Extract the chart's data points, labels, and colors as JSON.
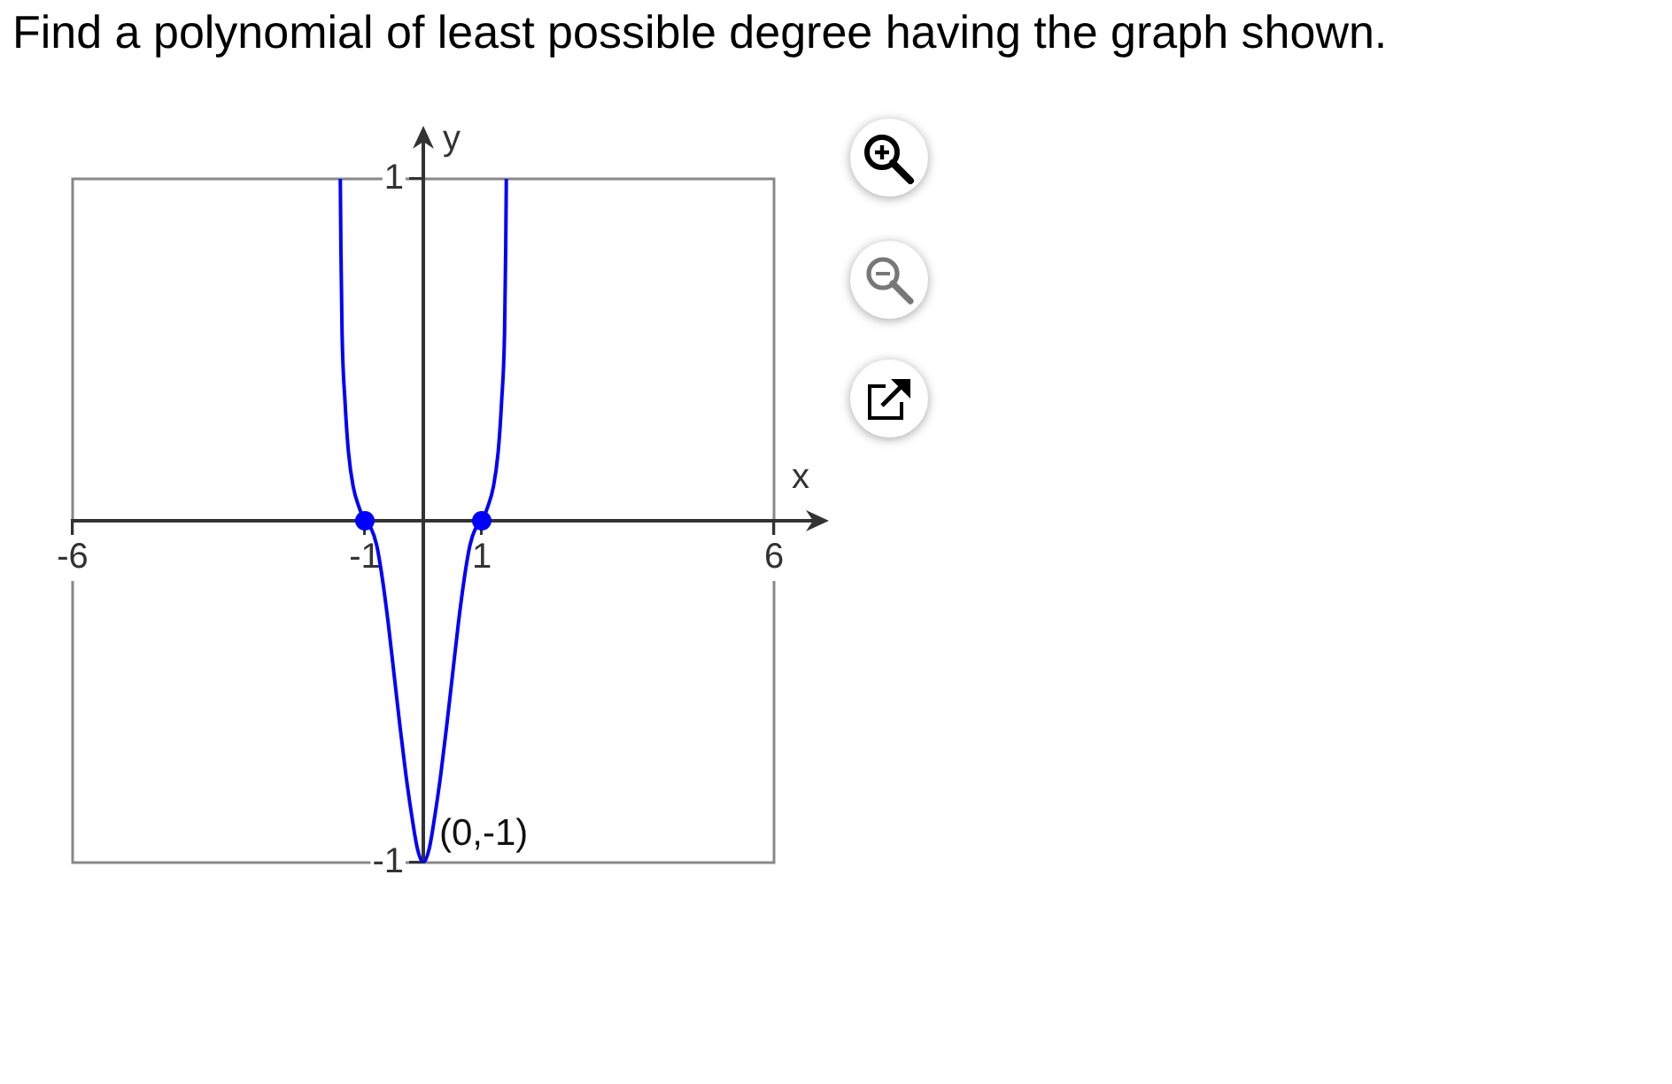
{
  "chart_data": {
    "type": "line",
    "title": "Find a polynomial of least possible degree having the graph shown.",
    "xlabel": "x",
    "ylabel": "y",
    "xlim": [
      -6,
      6
    ],
    "ylim": [
      -1,
      1
    ],
    "xticks": [
      -6,
      -1,
      1,
      6
    ],
    "yticks": [
      -1,
      1
    ],
    "grid": false,
    "series": [
      {
        "type": "line",
        "color": "#0000ff",
        "marker": "none",
        "x": [
          -1.42,
          -1.41,
          -1.39,
          -1.34,
          -1.28,
          -1.2,
          -1.1,
          -1.0,
          -0.9,
          -0.8,
          -0.7,
          -0.6,
          -0.5,
          -0.4,
          -0.3,
          -0.2,
          -0.1,
          0,
          0.1,
          0.2,
          0.3,
          0.4,
          0.5,
          0.6,
          0.7,
          0.8,
          0.9,
          1.0,
          1.1,
          1.2,
          1.28,
          1.34,
          1.39,
          1.41,
          1.42
        ],
        "values": [
          1,
          0.8,
          0.55,
          0.35,
          0.2,
          0.1,
          0.04,
          0,
          -0.02,
          -0.07,
          -0.17,
          -0.3,
          -0.45,
          -0.6,
          -0.74,
          -0.86,
          -0.96,
          -1,
          -0.96,
          -0.86,
          -0.74,
          -0.6,
          -0.45,
          -0.3,
          -0.17,
          -0.07,
          -0.02,
          0,
          0.04,
          0.1,
          0.2,
          0.35,
          0.55,
          0.8,
          1
        ]
      },
      {
        "type": "scatter",
        "color": "#0000ff",
        "marker": "circle",
        "x": [
          -1,
          1
        ],
        "values": [
          0,
          0
        ]
      }
    ],
    "annotations": [
      {
        "text": "(0,-1)",
        "x": 0,
        "y": -1
      }
    ]
  }
}
